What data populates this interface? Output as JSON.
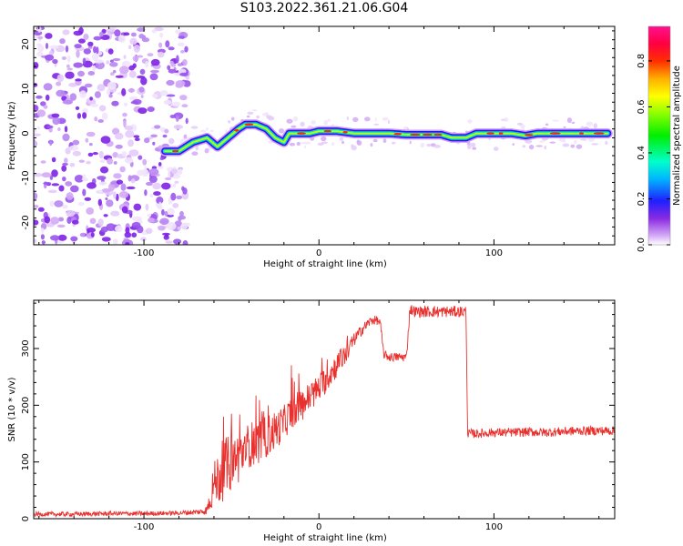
{
  "title": "S103.2022.361.21.06.G04",
  "chart_data": [
    {
      "type": "heatmap",
      "xlabel": "Height of straight line (km)",
      "ylabel": "Frequency (Hz)",
      "xlim": [
        -163,
        169
      ],
      "ylim": [
        -25,
        24
      ],
      "xticks": [
        -100,
        0,
        100
      ],
      "yticks": [
        -20,
        -10,
        0,
        10,
        20
      ],
      "colorbar": {
        "label": "Normalized spectral amplitude",
        "range": [
          0,
          0.95
        ],
        "ticks": [
          "0.0",
          "0.2",
          "0.4",
          "0.6",
          "0.8"
        ],
        "colormap": "gist_ncar-like (white-violet-blue-cyan-green-yellow-orange-red-magenta)"
      },
      "ridge": {
        "x": [
          -88,
          -80,
          -72,
          -64,
          -58,
          -52,
          -46,
          -42,
          -36,
          -30,
          -25,
          -20,
          -17,
          -12,
          -5,
          0,
          10,
          20,
          30,
          40,
          50,
          60,
          70,
          76,
          80,
          84,
          90,
          100,
          110,
          118,
          125,
          135,
          150,
          165
        ],
        "frequency_hz": [
          -4,
          -4,
          -2,
          -1,
          -3,
          -1,
          1,
          2,
          2,
          1,
          -1,
          -2,
          0,
          0,
          0,
          0.5,
          0.5,
          0,
          0,
          0,
          -0.3,
          -0.3,
          -0.3,
          -1,
          -1,
          -1,
          0,
          0,
          0,
          -0.5,
          0,
          0,
          0,
          0
        ]
      },
      "noise_region_x": [
        -163,
        -75
      ]
    },
    {
      "type": "line",
      "xlabel": "Height of straight line (km)",
      "ylabel": "SNR (10 * v/v)",
      "xlim": [
        -163,
        169
      ],
      "ylim": [
        0,
        385
      ],
      "xticks": [
        -100,
        0,
        100
      ],
      "yticks": [
        0,
        100,
        200,
        300
      ],
      "color": "#e8312e",
      "series": [
        {
          "x": [
            -163,
            -140,
            -120,
            -100,
            -80,
            -68,
            -64,
            -62,
            -60,
            -55,
            -50,
            -45,
            -40,
            -35,
            -30,
            -25,
            -20,
            -15,
            -10,
            -5,
            0,
            5,
            10,
            15,
            20,
            25,
            30,
            33,
            35,
            37,
            40,
            45,
            50,
            52,
            55,
            60,
            65,
            70,
            75,
            80,
            84,
            85,
            86,
            90,
            100,
            110,
            120,
            130,
            140,
            150,
            160,
            169
          ],
          "values": [
            8,
            8,
            9,
            9,
            10,
            12,
            15,
            40,
            60,
            85,
            100,
            110,
            130,
            135,
            145,
            155,
            170,
            190,
            200,
            215,
            230,
            250,
            270,
            290,
            315,
            335,
            350,
            350,
            345,
            290,
            285,
            285,
            285,
            370,
            365,
            365,
            365,
            365,
            365,
            365,
            365,
            150,
            150,
            150,
            152,
            152,
            153,
            152,
            154,
            155,
            155,
            155
          ],
          "noise_amplitude": [
            4,
            4,
            4,
            4,
            4,
            5,
            8,
            25,
            40,
            55,
            50,
            45,
            40,
            40,
            38,
            35,
            30,
            30,
            28,
            28,
            25,
            25,
            22,
            20,
            12,
            10,
            8,
            8,
            8,
            8,
            8,
            8,
            8,
            10,
            10,
            10,
            10,
            10,
            10,
            10,
            10,
            8,
            8,
            8,
            8,
            8,
            8,
            8,
            8,
            8,
            8,
            8
          ]
        }
      ]
    }
  ]
}
